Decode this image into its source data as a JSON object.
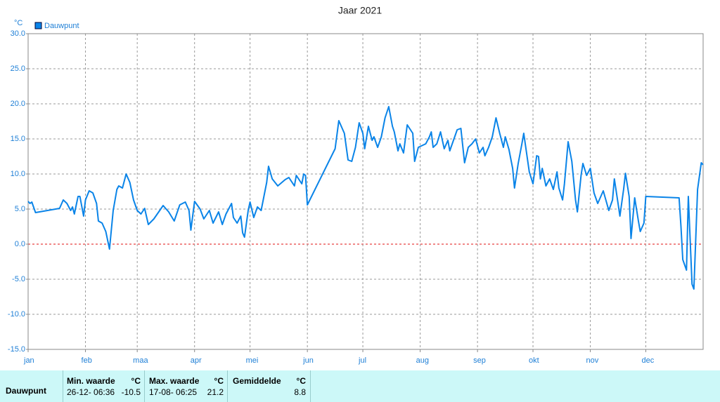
{
  "chart_data": {
    "type": "line",
    "title": "Jaar 2021",
    "y_unit": "°C",
    "xlim": [
      0,
      365
    ],
    "xticks": [
      {
        "value": 0,
        "label": "jan"
      },
      {
        "value": 31,
        "label": "feb"
      },
      {
        "value": 59,
        "label": "maa"
      },
      {
        "value": 90,
        "label": "apr"
      },
      {
        "value": 120,
        "label": "mei"
      },
      {
        "value": 151,
        "label": "jun"
      },
      {
        "value": 181,
        "label": "jul"
      },
      {
        "value": 212,
        "label": "aug"
      },
      {
        "value": 243,
        "label": "sep"
      },
      {
        "value": 273,
        "label": "okt"
      },
      {
        "value": 304,
        "label": "nov"
      },
      {
        "value": 334,
        "label": "dec"
      }
    ],
    "ylim": [
      -15,
      30
    ],
    "yticks": [
      {
        "value": -15,
        "label": "-15.0"
      },
      {
        "value": -10,
        "label": "-10.0"
      },
      {
        "value": -5,
        "label": "-5.0"
      },
      {
        "value": 0,
        "label": "0.0"
      },
      {
        "value": 5,
        "label": "5.0"
      },
      {
        "value": 10,
        "label": "10.0"
      },
      {
        "value": 15,
        "label": "15.0"
      },
      {
        "value": 20,
        "label": "20.0"
      },
      {
        "value": 25,
        "label": "25.0"
      },
      {
        "value": 30,
        "label": "30.0"
      }
    ],
    "grid": true,
    "reference_line": {
      "value": 0,
      "color": "#e01010"
    },
    "legend": "top-left",
    "x": [
      0,
      1,
      2,
      4,
      17,
      19,
      21,
      23,
      24,
      25,
      27,
      28,
      30,
      31,
      33,
      35,
      37,
      38,
      40,
      42,
      44,
      46,
      48,
      49,
      51,
      53,
      55,
      57,
      59,
      61,
      63,
      65,
      68,
      73,
      76,
      79,
      82,
      85,
      87,
      88,
      90,
      93,
      95,
      98,
      100,
      103,
      105,
      107,
      110,
      111,
      113,
      115,
      116,
      117,
      119,
      120,
      122,
      124,
      126,
      129,
      130,
      132,
      135,
      139,
      141,
      144,
      145,
      148,
      149,
      150,
      151,
      166,
      168,
      171,
      173,
      175,
      177,
      179,
      181,
      182,
      184,
      186,
      187,
      189,
      191,
      193,
      195,
      197,
      198,
      200,
      201,
      203,
      205,
      208,
      209,
      211,
      215,
      217,
      218,
      219,
      221,
      223,
      225,
      227,
      228,
      232,
      234,
      236,
      238,
      240,
      242,
      244,
      246,
      247,
      249,
      251,
      253,
      255,
      257,
      258,
      260,
      262,
      263,
      265,
      267,
      268,
      271,
      273,
      275,
      276,
      277,
      278,
      280,
      282,
      284,
      286,
      287,
      289,
      290,
      292,
      294,
      296,
      297,
      299,
      300,
      302,
      304,
      306,
      308,
      311,
      314,
      316,
      317,
      319,
      320,
      322,
      323,
      325,
      326,
      328,
      330,
      331,
      333,
      334,
      352,
      353,
      354,
      356,
      357,
      359,
      360,
      362,
      364,
      365
    ],
    "series": [
      {
        "name": "Dauwpunt",
        "color": "#0a84e8",
        "values": [
          6.1,
          5.8,
          6.0,
          4.5,
          5.1,
          6.3,
          5.8,
          4.8,
          5.3,
          4.3,
          6.8,
          6.8,
          4.0,
          6.3,
          7.6,
          7.3,
          5.8,
          3.3,
          3.0,
          1.8,
          -0.7,
          4.8,
          7.8,
          8.3,
          8.0,
          10.0,
          8.8,
          6.3,
          4.8,
          4.3,
          5.1,
          2.8,
          3.6,
          5.5,
          4.6,
          3.3,
          5.6,
          6.0,
          4.8,
          2.0,
          6.1,
          5.0,
          3.6,
          4.8,
          3.0,
          4.6,
          2.8,
          4.3,
          5.8,
          3.8,
          3.0,
          4.0,
          1.6,
          1.0,
          4.8,
          6.0,
          3.8,
          5.3,
          4.8,
          8.8,
          11.1,
          9.3,
          8.3,
          9.2,
          9.5,
          8.3,
          9.8,
          8.6,
          10.0,
          9.8,
          5.6,
          13.6,
          17.6,
          15.8,
          12.0,
          11.8,
          13.8,
          17.3,
          15.8,
          13.6,
          16.8,
          14.8,
          15.3,
          13.8,
          15.3,
          18.0,
          19.6,
          16.8,
          16.0,
          13.3,
          14.3,
          13.0,
          17.0,
          15.8,
          11.8,
          13.8,
          14.3,
          15.3,
          16.0,
          13.8,
          14.3,
          16.0,
          13.6,
          14.8,
          13.3,
          16.3,
          16.5,
          11.6,
          13.8,
          14.3,
          15.0,
          13.0,
          13.8,
          12.6,
          13.8,
          15.3,
          18.0,
          15.8,
          13.8,
          15.3,
          13.5,
          10.8,
          8.0,
          11.5,
          14.3,
          15.8,
          10.3,
          8.6,
          12.6,
          12.5,
          9.3,
          10.8,
          8.3,
          9.3,
          7.8,
          10.3,
          8.0,
          6.3,
          8.6,
          14.6,
          11.8,
          6.3,
          4.6,
          9.8,
          11.5,
          9.8,
          10.8,
          7.3,
          5.8,
          7.6,
          4.8,
          6.3,
          9.3,
          5.8,
          4.0,
          7.8,
          10.1,
          6.8,
          0.8,
          6.6,
          3.3,
          1.8,
          3.0,
          6.8,
          6.6,
          2.6,
          -2.2,
          -3.7,
          6.8,
          -5.7,
          -6.4,
          7.8,
          11.6,
          11.3
        ]
      }
    ]
  },
  "stats": {
    "row_label": "Dauwpunt",
    "columns": [
      {
        "header": "Min. waarde",
        "unit": "°C",
        "time": "26-12- 06:36",
        "value": -10.5
      },
      {
        "header": "Max. waarde",
        "unit": "°C",
        "time": "17-08- 06:25",
        "value": 21.2
      },
      {
        "header": "Gemiddelde",
        "unit": "°C",
        "value": 8.8
      }
    ]
  }
}
